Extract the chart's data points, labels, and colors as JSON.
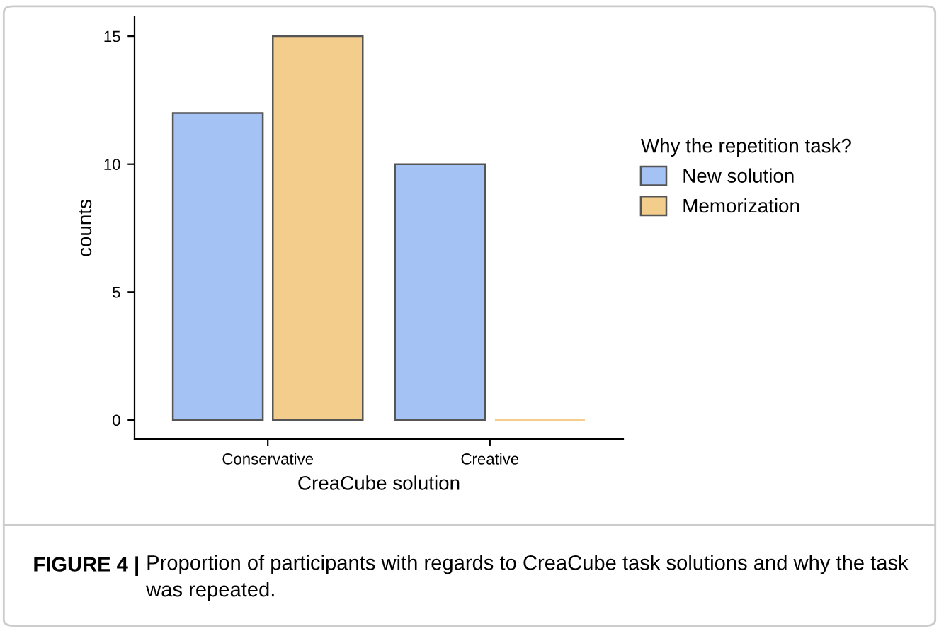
{
  "chart_data": {
    "type": "bar",
    "xlabel": "CreaCube solution",
    "ylabel": "counts",
    "legend_title": "Why the repetition task?",
    "categories": [
      "Conservative",
      "Creative"
    ],
    "series": [
      {
        "name": "New solution",
        "color": "#a4c2f4",
        "values": [
          12,
          10
        ]
      },
      {
        "name": "Memorization",
        "color": "#f3cd8c",
        "values": [
          15,
          0
        ]
      }
    ],
    "ylim": [
      -0.75,
      15.75
    ],
    "yticks": [
      0,
      5,
      10,
      15
    ],
    "grid": false,
    "legend": "right",
    "annotations": [
      "FIGURE 4 |",
      "Proportion of participants with regards to CreaCube task solutions and why the task was repeated."
    ]
  }
}
